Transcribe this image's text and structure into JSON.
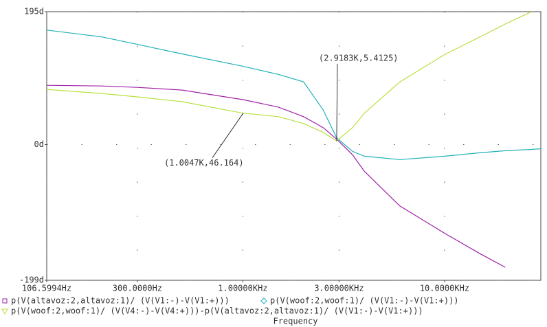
{
  "chart_data": {
    "type": "line",
    "xscale": "log",
    "x_label": "Frequency",
    "x": [
      106.5994,
      200,
      300,
      500,
      1000,
      1500,
      2000,
      2500,
      2918.3,
      3500,
      4000,
      6000,
      10000,
      15000,
      20000,
      27000,
      30000
    ],
    "xlim": [
      106.5994,
      30000
    ],
    "xticks": [
      {
        "value": 106.5994,
        "label": "106.5994Hz"
      },
      {
        "value": 300,
        "label": "300.0000Hz"
      },
      {
        "value": 1000,
        "label": "1.00000KHz"
      },
      {
        "value": 3000,
        "label": "3.00000KHz"
      },
      {
        "value": 10000,
        "label": "10.0000KHz"
      }
    ],
    "ylim": [
      -199,
      195
    ],
    "yticks": [
      {
        "value": -199,
        "label": "-199d"
      },
      {
        "value": 0,
        "label": "0d"
      },
      {
        "value": 195,
        "label": "195d"
      }
    ],
    "grid": true,
    "series": [
      {
        "name": "p(V(altavoz:2,altavoz:1)/ (V(V1:-)-V(V1:+)))",
        "color": "#a020a8",
        "marker": "square",
        "values": [
          87,
          86,
          84,
          80,
          66,
          55,
          41,
          25,
          8,
          -15,
          -39,
          -90,
          -130,
          -160,
          -180,
          null,
          null
        ]
      },
      {
        "name": "p(V(woof:2,woof:1)/ (V(V1:-)-V(V1:+)))",
        "color": "#20b0b8",
        "marker": "diamond",
        "values": [
          168,
          158,
          147,
          133,
          115,
          103,
          92,
          51,
          10,
          -10,
          -17,
          -22,
          -17,
          -12,
          -9,
          -7,
          -6
        ]
      },
      {
        "name": "p(V(woof:2,woof:1)/ (V(V4:-)-V(V4:+)))-p(V(altavoz:2,altavoz:1)/ (V(V1:-)-V(V1:+)))",
        "color": "#b8e040",
        "marker": "triangle",
        "values": [
          81,
          75,
          70,
          63,
          46.164,
          41,
          31,
          18,
          5.4125,
          25,
          46,
          92,
          132,
          158,
          177,
          195,
          null
        ]
      }
    ],
    "annotations": [
      {
        "text": "(2.9183K,5.4125)",
        "x": 2918.3,
        "y": 5.4125
      },
      {
        "text": "(1.0047K,46.164)",
        "x": 1004.7,
        "y": 46.164
      }
    ]
  }
}
